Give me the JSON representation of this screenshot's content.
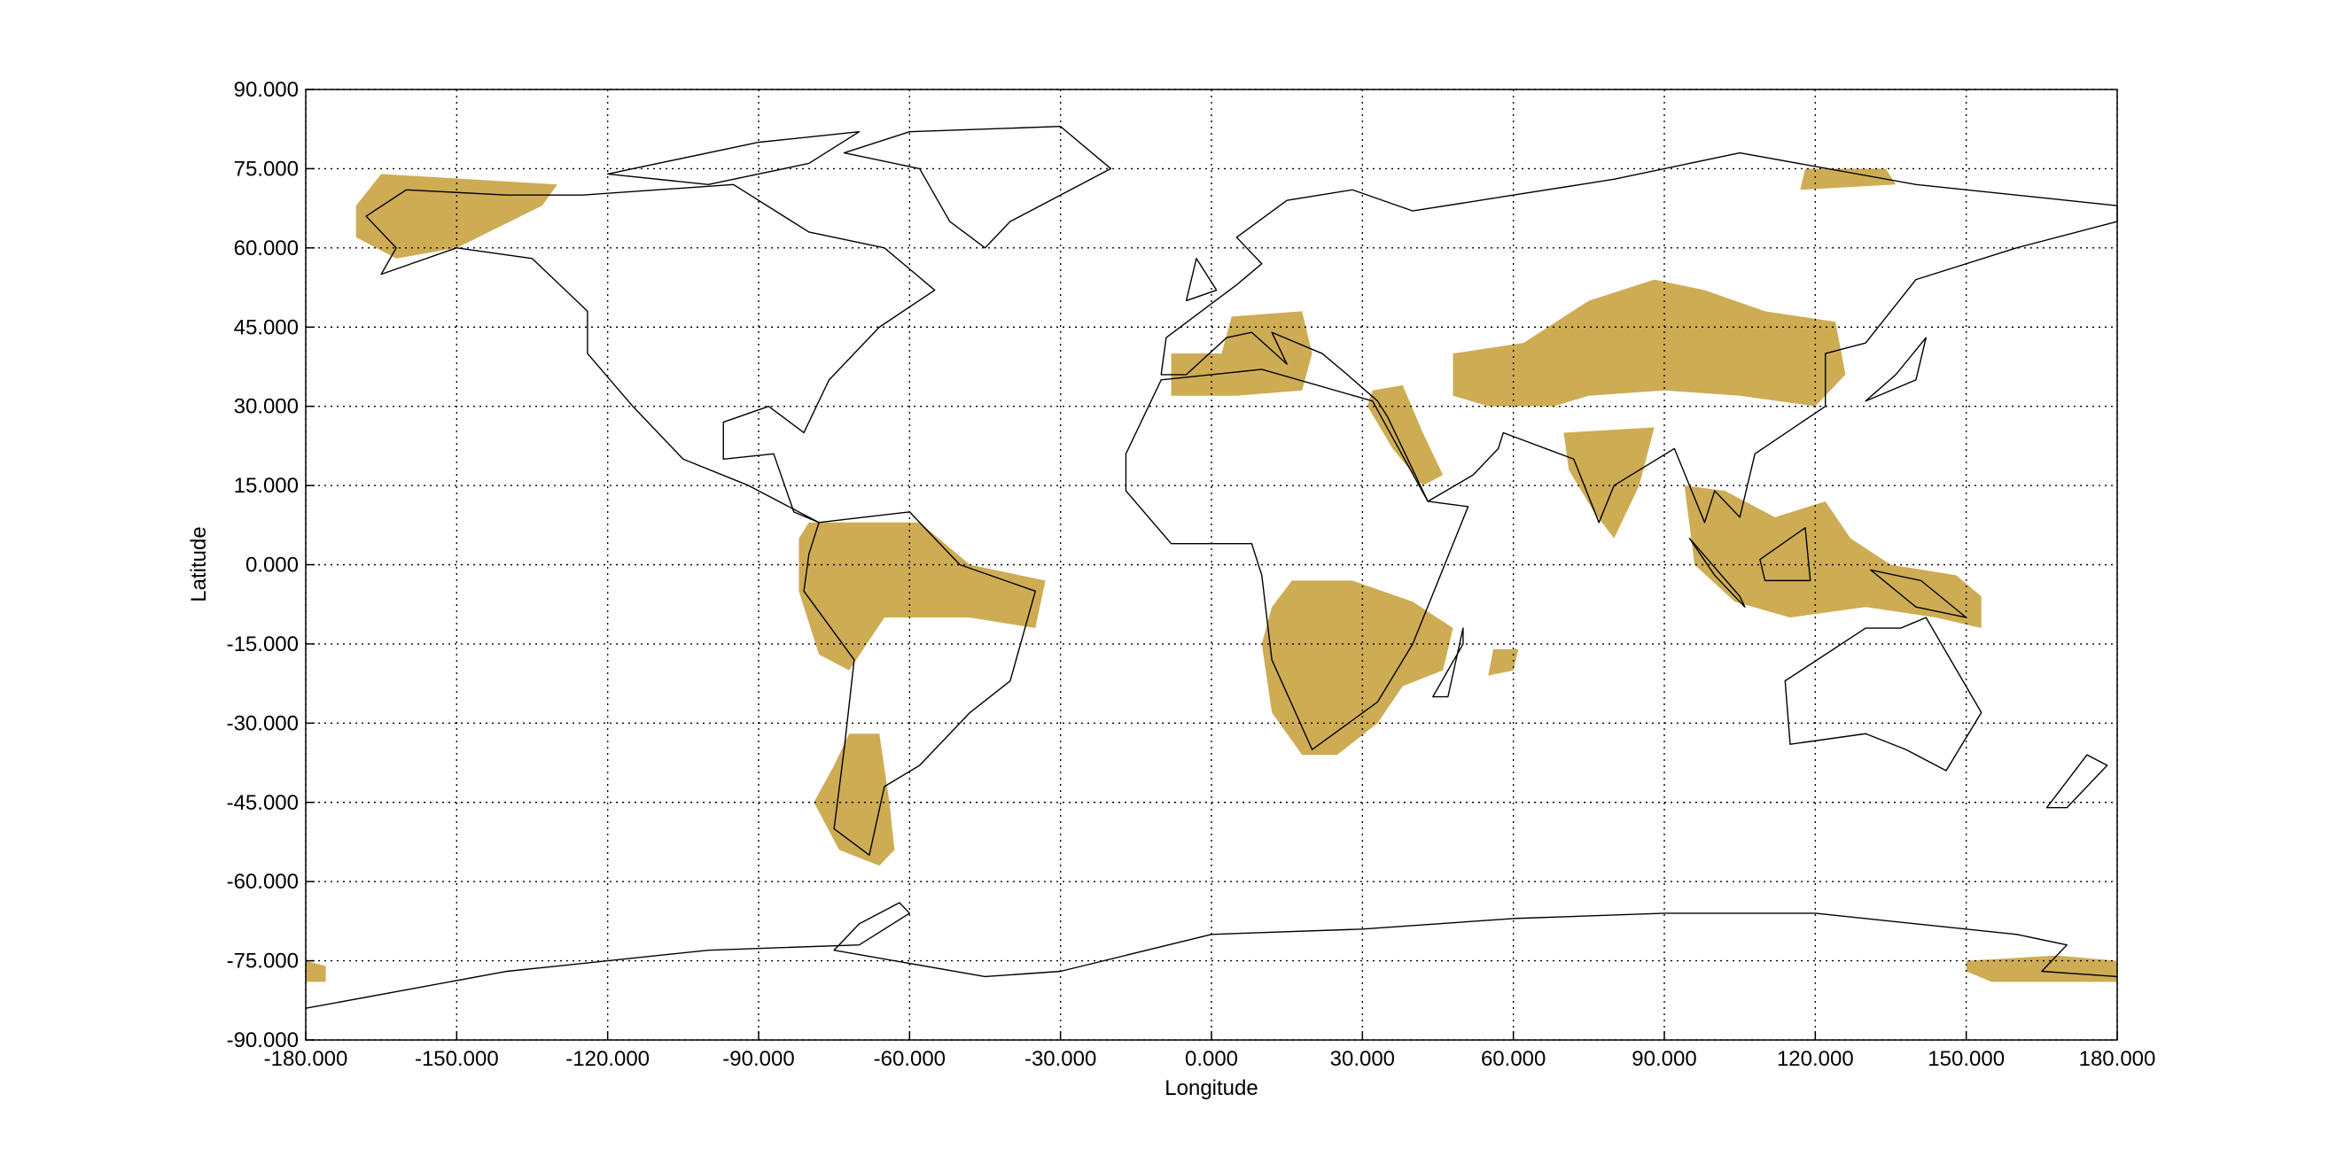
{
  "chart_data": {
    "type": "map",
    "xlabel": "Longitude",
    "ylabel": "Latitude",
    "xlim": [
      -180,
      180
    ],
    "ylim": [
      -90,
      90
    ],
    "xticks": [
      {
        "value": -180,
        "label": "-180.000"
      },
      {
        "value": -150,
        "label": "-150.000"
      },
      {
        "value": -120,
        "label": "-120.000"
      },
      {
        "value": -90,
        "label": "-90.000"
      },
      {
        "value": -60,
        "label": "-60.000"
      },
      {
        "value": -30,
        "label": "-30.000"
      },
      {
        "value": 0,
        "label": "0.000"
      },
      {
        "value": 30,
        "label": "30.000"
      },
      {
        "value": 60,
        "label": "60.000"
      },
      {
        "value": 90,
        "label": "90.000"
      },
      {
        "value": 120,
        "label": "120.000"
      },
      {
        "value": 150,
        "label": "150.000"
      },
      {
        "value": 180,
        "label": "180.000"
      }
    ],
    "yticks": [
      {
        "value": -90,
        "label": "-90.000"
      },
      {
        "value": -75,
        "label": "-75.000"
      },
      {
        "value": -60,
        "label": "-60.000"
      },
      {
        "value": -45,
        "label": "-45.000"
      },
      {
        "value": -30,
        "label": "-30.000"
      },
      {
        "value": -15,
        "label": "-15.000"
      },
      {
        "value": 0,
        "label": "0.000"
      },
      {
        "value": 15,
        "label": "15.000"
      },
      {
        "value": 30,
        "label": "30.000"
      },
      {
        "value": 45,
        "label": "45.000"
      },
      {
        "value": 60,
        "label": "60.000"
      },
      {
        "value": 75,
        "label": "75.000"
      },
      {
        "value": 90,
        "label": "90.000"
      }
    ],
    "grid": true
  }
}
